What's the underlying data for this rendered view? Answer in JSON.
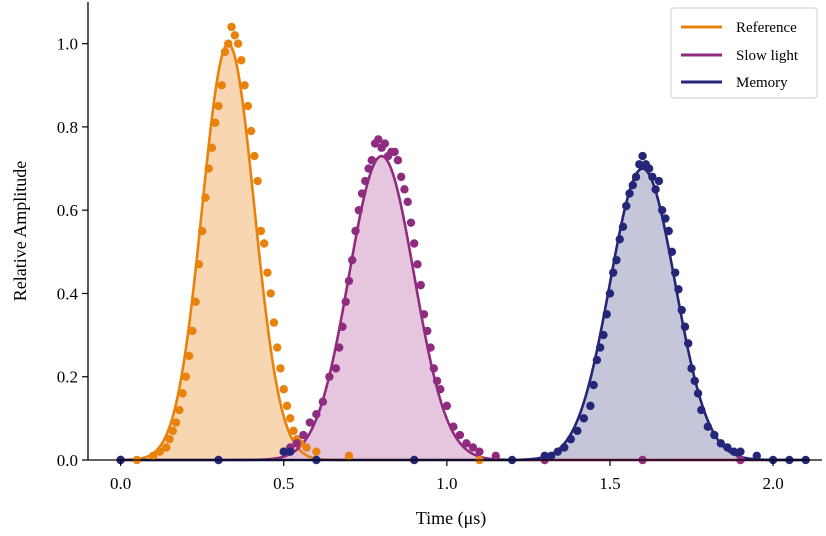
{
  "chart_data": {
    "type": "line",
    "title": "",
    "xlabel": "Time (μs)",
    "ylabel": "Relative Amplitude",
    "xlim": [
      -0.1,
      2.15
    ],
    "ylim": [
      0.0,
      1.1
    ],
    "xticks": [
      "0.0",
      "0.5",
      "1.0",
      "1.5",
      "2.0"
    ],
    "yticks": [
      "0.0",
      "0.2",
      "0.4",
      "0.6",
      "0.8",
      "1.0"
    ],
    "grid": false,
    "legend_position": "top-right",
    "series": [
      {
        "name": "Reference",
        "color": "#e8820c",
        "fill": "#f7d2aa",
        "fit": {
          "center": 0.33,
          "sigma": 0.08,
          "amplitude": 1.0
        },
        "points": [
          [
            0.0,
            0.0
          ],
          [
            0.05,
            0.0
          ],
          [
            0.1,
            0.01
          ],
          [
            0.12,
            0.02
          ],
          [
            0.14,
            0.03
          ],
          [
            0.15,
            0.05
          ],
          [
            0.16,
            0.07
          ],
          [
            0.17,
            0.09
          ],
          [
            0.18,
            0.12
          ],
          [
            0.19,
            0.16
          ],
          [
            0.2,
            0.2
          ],
          [
            0.21,
            0.25
          ],
          [
            0.22,
            0.31
          ],
          [
            0.23,
            0.38
          ],
          [
            0.24,
            0.47
          ],
          [
            0.25,
            0.55
          ],
          [
            0.26,
            0.63
          ],
          [
            0.27,
            0.7
          ],
          [
            0.28,
            0.75
          ],
          [
            0.29,
            0.81
          ],
          [
            0.3,
            0.85
          ],
          [
            0.31,
            0.9
          ],
          [
            0.32,
            0.98
          ],
          [
            0.33,
            1.0
          ],
          [
            0.34,
            1.04
          ],
          [
            0.35,
            1.02
          ],
          [
            0.36,
            1.0
          ],
          [
            0.37,
            0.96
          ],
          [
            0.38,
            0.9
          ],
          [
            0.39,
            0.85
          ],
          [
            0.4,
            0.79
          ],
          [
            0.41,
            0.73
          ],
          [
            0.42,
            0.67
          ],
          [
            0.43,
            0.55
          ],
          [
            0.44,
            0.52
          ],
          [
            0.45,
            0.45
          ],
          [
            0.46,
            0.4
          ],
          [
            0.47,
            0.33
          ],
          [
            0.48,
            0.27
          ],
          [
            0.49,
            0.22
          ],
          [
            0.5,
            0.17
          ],
          [
            0.51,
            0.13
          ],
          [
            0.52,
            0.1
          ],
          [
            0.53,
            0.07
          ],
          [
            0.54,
            0.05
          ],
          [
            0.55,
            0.04
          ],
          [
            0.57,
            0.03
          ],
          [
            0.6,
            0.02
          ],
          [
            0.7,
            0.01
          ],
          [
            0.9,
            0.0
          ],
          [
            1.1,
            0.0
          ],
          [
            1.3,
            0.0
          ],
          [
            1.6,
            0.0
          ],
          [
            1.9,
            0.0
          ]
        ]
      },
      {
        "name": "Slow light",
        "color": "#8f2c80",
        "fill": "#e2c0da",
        "fit": {
          "center": 0.8,
          "sigma": 0.1,
          "amplitude": 0.73
        },
        "points": [
          [
            0.0,
            0.0
          ],
          [
            0.3,
            0.0
          ],
          [
            0.5,
            0.02
          ],
          [
            0.52,
            0.03
          ],
          [
            0.54,
            0.04
          ],
          [
            0.56,
            0.06
          ],
          [
            0.58,
            0.09
          ],
          [
            0.6,
            0.11
          ],
          [
            0.62,
            0.14
          ],
          [
            0.64,
            0.2
          ],
          [
            0.66,
            0.22
          ],
          [
            0.67,
            0.27
          ],
          [
            0.68,
            0.32
          ],
          [
            0.69,
            0.38
          ],
          [
            0.7,
            0.43
          ],
          [
            0.71,
            0.48
          ],
          [
            0.72,
            0.55
          ],
          [
            0.73,
            0.6
          ],
          [
            0.74,
            0.64
          ],
          [
            0.75,
            0.67
          ],
          [
            0.76,
            0.7
          ],
          [
            0.77,
            0.72
          ],
          [
            0.78,
            0.76
          ],
          [
            0.79,
            0.77
          ],
          [
            0.8,
            0.75
          ],
          [
            0.81,
            0.76
          ],
          [
            0.82,
            0.73
          ],
          [
            0.83,
            0.74
          ],
          [
            0.84,
            0.74
          ],
          [
            0.85,
            0.72
          ],
          [
            0.86,
            0.68
          ],
          [
            0.87,
            0.65
          ],
          [
            0.88,
            0.62
          ],
          [
            0.89,
            0.57
          ],
          [
            0.9,
            0.52
          ],
          [
            0.91,
            0.47
          ],
          [
            0.92,
            0.42
          ],
          [
            0.93,
            0.35
          ],
          [
            0.94,
            0.31
          ],
          [
            0.95,
            0.27
          ],
          [
            0.96,
            0.22
          ],
          [
            0.97,
            0.19
          ],
          [
            0.98,
            0.17
          ],
          [
            1.0,
            0.13
          ],
          [
            1.02,
            0.08
          ],
          [
            1.04,
            0.06
          ],
          [
            1.06,
            0.04
          ],
          [
            1.08,
            0.03
          ],
          [
            1.1,
            0.02
          ],
          [
            1.15,
            0.01
          ],
          [
            1.3,
            0.0
          ],
          [
            1.6,
            0.0
          ],
          [
            1.9,
            0.0
          ]
        ]
      },
      {
        "name": "Memory",
        "color": "#252677",
        "fill": "#bfc0d6",
        "fit": {
          "center": 1.6,
          "sigma": 0.1,
          "amplitude": 0.7
        },
        "points": [
          [
            0.0,
            0.0
          ],
          [
            0.3,
            0.0
          ],
          [
            0.5,
            0.02
          ],
          [
            0.52,
            0.02
          ],
          [
            0.6,
            0.0
          ],
          [
            0.9,
            0.0
          ],
          [
            1.2,
            0.0
          ],
          [
            1.3,
            0.01
          ],
          [
            1.32,
            0.01
          ],
          [
            1.34,
            0.02
          ],
          [
            1.36,
            0.03
          ],
          [
            1.38,
            0.05
          ],
          [
            1.4,
            0.07
          ],
          [
            1.42,
            0.1
          ],
          [
            1.44,
            0.13
          ],
          [
            1.45,
            0.18
          ],
          [
            1.46,
            0.24
          ],
          [
            1.47,
            0.27
          ],
          [
            1.48,
            0.3
          ],
          [
            1.49,
            0.35
          ],
          [
            1.5,
            0.4
          ],
          [
            1.51,
            0.45
          ],
          [
            1.52,
            0.48
          ],
          [
            1.53,
            0.53
          ],
          [
            1.54,
            0.56
          ],
          [
            1.55,
            0.61
          ],
          [
            1.56,
            0.64
          ],
          [
            1.57,
            0.66
          ],
          [
            1.58,
            0.68
          ],
          [
            1.59,
            0.71
          ],
          [
            1.6,
            0.73
          ],
          [
            1.61,
            0.71
          ],
          [
            1.62,
            0.7
          ],
          [
            1.63,
            0.68
          ],
          [
            1.64,
            0.65
          ],
          [
            1.65,
            0.67
          ],
          [
            1.66,
            0.6
          ],
          [
            1.67,
            0.58
          ],
          [
            1.68,
            0.55
          ],
          [
            1.69,
            0.5
          ],
          [
            1.7,
            0.45
          ],
          [
            1.71,
            0.41
          ],
          [
            1.72,
            0.36
          ],
          [
            1.73,
            0.32
          ],
          [
            1.74,
            0.28
          ],
          [
            1.75,
            0.22
          ],
          [
            1.76,
            0.19
          ],
          [
            1.77,
            0.16
          ],
          [
            1.78,
            0.12
          ],
          [
            1.8,
            0.08
          ],
          [
            1.82,
            0.06
          ],
          [
            1.84,
            0.04
          ],
          [
            1.86,
            0.03
          ],
          [
            1.88,
            0.02
          ],
          [
            1.9,
            0.02
          ],
          [
            1.95,
            0.01
          ],
          [
            2.0,
            0.0
          ],
          [
            2.05,
            0.0
          ],
          [
            2.1,
            0.0
          ]
        ]
      }
    ]
  }
}
